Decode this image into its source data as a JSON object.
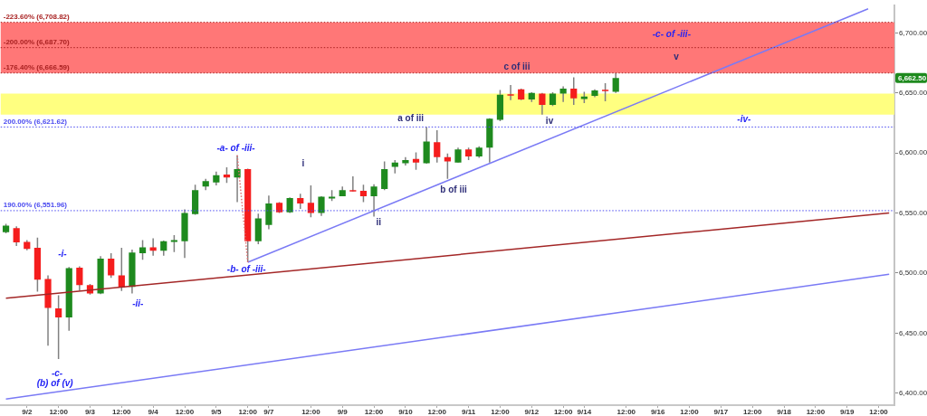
{
  "chart_data": {
    "type": "candlestick",
    "categories": [
      null,
      null,
      "9/2",
      null,
      null,
      "12:00",
      null,
      null,
      "9/3",
      null,
      null,
      "12:00",
      null,
      null,
      "9/4",
      null,
      null,
      "12:00",
      null,
      null,
      "9/5",
      null,
      null,
      "12:00",
      null,
      "9/7",
      null,
      null,
      null,
      "12:00",
      null,
      null,
      "9/9",
      null,
      null,
      "12:00",
      null,
      null,
      "9/10",
      null,
      null,
      "12:00",
      null,
      null,
      "9/11",
      null,
      null,
      "12:00",
      null,
      null,
      "9/12",
      null,
      null,
      "12:00",
      null,
      "9/14",
      null,
      null,
      null,
      "12:00",
      null,
      null,
      "9/16",
      null,
      null,
      "12:00",
      null,
      null,
      "9/17",
      null,
      null,
      "12:00",
      null,
      null,
      "9/18",
      null,
      null,
      "12:00",
      null,
      null,
      "9/19",
      null,
      null,
      "12:00",
      null
    ],
    "ohlc": [
      [
        6534,
        6541,
        6533,
        6539.5
      ],
      [
        6537.5,
        6539,
        6522.5,
        6525.5
      ],
      [
        6526,
        6527.5,
        6519,
        6520
      ],
      [
        6521,
        6529.5,
        6484.5,
        6494.5
      ],
      [
        6495,
        6498,
        6439.5,
        6471
      ],
      [
        6470.5,
        6481.5,
        6428.5,
        6463
      ],
      [
        6463,
        6505,
        6452,
        6504
      ],
      [
        6504.5,
        6505.5,
        6485.5,
        6490
      ],
      [
        6490,
        6491,
        6482,
        6483
      ],
      [
        6483,
        6514,
        6482.5,
        6512
      ],
      [
        6512,
        6516.5,
        6496,
        6498
      ],
      [
        6498,
        6521,
        6485,
        6488
      ],
      [
        6488.5,
        6519.5,
        6483,
        6517
      ],
      [
        6516.5,
        6527.5,
        6511,
        6521.5
      ],
      [
        6521.5,
        6529,
        6514.5,
        6518.5
      ],
      [
        6518.5,
        6527,
        6514.5,
        6526.5
      ],
      [
        6526,
        6531.5,
        6517.5,
        6527.5
      ],
      [
        6526.5,
        6553,
        6512.5,
        6550
      ],
      [
        6549,
        6573.5,
        6548.5,
        6569
      ],
      [
        6572,
        6578.5,
        6569,
        6576.5
      ],
      [
        6575.5,
        6584.5,
        6573,
        6581.5
      ],
      [
        6582,
        6588,
        6575,
        6579.5
      ],
      [
        6579.5,
        6598,
        6559,
        6586.5
      ],
      [
        6586.5,
        6587,
        6509,
        6526.5
      ],
      [
        6526.5,
        6549.5,
        6524,
        6545.5
      ],
      [
        6540,
        6564.5,
        6536.5,
        6558
      ],
      [
        6558.5,
        6559,
        6550,
        6550.5
      ],
      [
        6550.5,
        6563,
        6550,
        6562.5
      ],
      [
        6562.5,
        6566,
        6553.5,
        6558
      ],
      [
        6558.5,
        6573,
        6546.5,
        6550
      ],
      [
        6550,
        6564,
        6547.5,
        6563.5
      ],
      [
        6562,
        6569,
        6560,
        6563.5
      ],
      [
        6564,
        6572,
        6564,
        6569
      ],
      [
        6569,
        6580.5,
        6568,
        6568
      ],
      [
        6568.5,
        6573.5,
        6559,
        6564
      ],
      [
        6564,
        6574,
        6547,
        6572
      ],
      [
        6570,
        6593,
        6569,
        6586.5
      ],
      [
        6588.5,
        6594,
        6583,
        6592
      ],
      [
        6591.5,
        6596.5,
        6589.5,
        6594
      ],
      [
        6595,
        6600.5,
        6586,
        6592
      ],
      [
        6591.5,
        6621.5,
        6591,
        6609.5
      ],
      [
        6609,
        6619,
        6592,
        6596.5
      ],
      [
        6596.5,
        6599.5,
        6578.5,
        6593
      ],
      [
        6592,
        6604.5,
        6592,
        6603
      ],
      [
        6603,
        6604.5,
        6594,
        6597
      ],
      [
        6597,
        6605.5,
        6596,
        6604.5
      ],
      [
        6604.5,
        6629,
        6592,
        6628.5
      ],
      [
        6627.5,
        6652.5,
        6626.5,
        6648.5
      ],
      [
        6648.5,
        6656.5,
        6644,
        6648
      ],
      [
        6653,
        6653.5,
        6644,
        6644.5
      ],
      [
        6644.5,
        6650.5,
        6642.5,
        6650
      ],
      [
        6649.5,
        6650,
        6632,
        6640
      ],
      [
        6640,
        6650.5,
        6639,
        6649.5
      ],
      [
        6649.5,
        6655.5,
        6642.5,
        6653.5
      ],
      [
        6653.5,
        6663,
        6640,
        6645.5
      ],
      [
        6645,
        6651,
        6641.5,
        6647
      ],
      [
        6647.5,
        6653,
        6646.5,
        6652
      ],
      [
        6652.5,
        6658,
        6643,
        6651.5
      ],
      [
        6651,
        6666.5,
        6650,
        6662.5
      ],
      null,
      null,
      null,
      null,
      null,
      null,
      null,
      null,
      null,
      null,
      null,
      null,
      null,
      null,
      null,
      null,
      null,
      null,
      null,
      null,
      null,
      null,
      null,
      null,
      null,
      null
    ],
    "colors": [
      "#1e8a1e",
      "#f51d1d",
      "#f51d1d",
      "#f51d1d",
      "#f51d1d",
      "#f51d1d",
      "#1e8a1e",
      "#f51d1d",
      "#f51d1d",
      "#1e8a1e",
      "#f51d1d",
      "#f51d1d",
      "#1e8a1e",
      "#1e8a1e",
      "#f51d1d",
      "#1e8a1e",
      "#1e8a1e",
      "#1e8a1e",
      "#1e8a1e",
      "#1e8a1e",
      "#1e8a1e",
      "#f51d1d",
      "#1e8a1e",
      "#f51d1d",
      "#1e8a1e",
      "#1e8a1e",
      "#f51d1d",
      "#1e8a1e",
      "#f51d1d",
      "#f51d1d",
      "#1e8a1e",
      "#1e8a1e",
      "#1e8a1e",
      "#f51d1d",
      "#f51d1d",
      "#1e8a1e",
      "#1e8a1e",
      "#1e8a1e",
      "#1e8a1e",
      "#f51d1d",
      "#1e8a1e",
      "#f51d1d",
      "#f51d1d",
      "#1e8a1e",
      "#f51d1d",
      "#1e8a1e",
      "#1e8a1e",
      "#1e8a1e",
      "#f51d1d",
      "#f51d1d",
      "#1e8a1e",
      "#f51d1d",
      "#1e8a1e",
      "#1e8a1e",
      "#f51d1d",
      "#1e8a1e",
      "#1e8a1e",
      "#f51d1d",
      "#1e8a1e",
      null,
      null,
      null,
      null,
      null,
      null,
      null,
      null,
      null,
      null,
      null,
      null,
      null,
      null,
      null,
      null,
      null,
      null,
      null,
      null,
      null,
      null,
      null,
      null,
      null,
      null
    ],
    "series": [
      {
        "type": "line",
        "color": "#a32626",
        "values": [
          6479,
          null,
          null,
          null,
          null,
          null,
          null,
          null,
          null,
          null,
          null,
          null,
          null,
          null,
          null,
          null,
          null,
          null,
          null,
          null,
          null,
          null,
          null,
          null,
          null,
          null,
          null,
          null,
          null,
          null,
          null,
          null,
          null,
          null,
          null,
          null,
          null,
          null,
          null,
          null,
          null,
          null,
          null,
          null,
          null,
          null,
          null,
          null,
          null,
          null,
          null,
          null,
          null,
          null,
          null,
          null,
          null,
          null,
          null,
          null,
          null,
          null,
          null,
          null,
          null,
          null,
          null,
          null,
          null,
          null,
          null,
          null,
          null,
          null,
          null,
          null,
          null,
          null,
          null,
          null,
          null,
          null,
          null,
          null,
          6550
        ]
      },
      {
        "type": "line",
        "color": "#7a7af5",
        "values": [
          6395,
          null,
          null,
          null,
          null,
          null,
          null,
          null,
          null,
          null,
          null,
          null,
          null,
          null,
          null,
          null,
          null,
          null,
          null,
          null,
          null,
          null,
          null,
          null,
          null,
          null,
          null,
          null,
          null,
          null,
          null,
          null,
          null,
          null,
          null,
          null,
          null,
          null,
          null,
          null,
          null,
          null,
          null,
          null,
          null,
          null,
          null,
          null,
          null,
          null,
          null,
          null,
          null,
          null,
          null,
          null,
          null,
          null,
          null,
          null,
          null,
          null,
          null,
          null,
          null,
          null,
          null,
          null,
          null,
          null,
          null,
          null,
          null,
          null,
          null,
          null,
          null,
          null,
          null,
          null,
          null,
          null,
          null,
          null,
          6499
        ]
      },
      {
        "type": "line",
        "color": "#7a7af5",
        "values": [
          null,
          null,
          null,
          null,
          null,
          null,
          null,
          null,
          null,
          null,
          null,
          null,
          null,
          null,
          null,
          null,
          null,
          null,
          null,
          null,
          null,
          null,
          null,
          6509,
          null,
          null,
          null,
          null,
          null,
          null,
          null,
          null,
          null,
          null,
          null,
          null,
          null,
          null,
          null,
          null,
          null,
          null,
          null,
          null,
          null,
          null,
          null,
          null,
          null,
          null,
          null,
          null,
          null,
          null,
          null,
          null,
          null,
          null,
          null,
          null,
          null,
          null,
          null,
          null,
          null,
          null,
          null,
          null,
          null,
          null,
          null,
          null,
          null,
          null,
          null,
          null,
          null,
          null,
          null,
          null,
          null,
          null,
          6720,
          null,
          null
        ]
      },
      {
        "type": "line",
        "color": "#e07070",
        "line_style": "dotted",
        "values": [
          null,
          null,
          null,
          null,
          null,
          null,
          null,
          null,
          null,
          null,
          null,
          null,
          null,
          null,
          null,
          null,
          null,
          null,
          null,
          null,
          null,
          null,
          6598,
          6509,
          null,
          null,
          null,
          null,
          null,
          null,
          null,
          null,
          null,
          null,
          null,
          null,
          null,
          null,
          null,
          null,
          null,
          null,
          null,
          null,
          null,
          null,
          null,
          null,
          null,
          null,
          null,
          null,
          null,
          null,
          null,
          null,
          null,
          null,
          null,
          null,
          null,
          null,
          null,
          null,
          null,
          null,
          null,
          null,
          null,
          null,
          null,
          null,
          null,
          null,
          null,
          null,
          null,
          null,
          null,
          null,
          null,
          null,
          null,
          null,
          null
        ]
      }
    ],
    "ylim": [
      6390,
      6723
    ],
    "yticks": [
      {
        "value": 6400,
        "label": "6,400.00"
      },
      {
        "value": 6450,
        "label": "6,450.00"
      },
      {
        "value": 6500,
        "label": "6,500.00"
      },
      {
        "value": 6550,
        "label": "6,550.00"
      },
      {
        "value": 6600,
        "label": "6,600.00"
      },
      {
        "value": 6650,
        "label": "6,650.00"
      },
      {
        "value": 6700,
        "label": "6,700.00"
      }
    ],
    "bands": [
      {
        "axis": "y",
        "from": 6632,
        "to": 6649.5,
        "color": "#ffff80"
      },
      {
        "axis": "y",
        "from": 6666.59,
        "to": 6708.82,
        "color": "#ff7777"
      }
    ],
    "ref_lines": [
      {
        "axis": "y",
        "value": 6621.62,
        "label": "200.00% (6,621.62)",
        "color": "#4a4af0",
        "line_style": "dotted"
      },
      {
        "axis": "y",
        "value": 6551.96,
        "label": "190.00% (6,551.96)",
        "color": "#4a4af0",
        "line_style": "dotted"
      },
      {
        "axis": "y",
        "value": 6666.59,
        "label": "-176.40% (6,666.59)",
        "color": "#a82020",
        "line_style": "dotted"
      },
      {
        "axis": "y",
        "value": 6687.7,
        "label": "-200.00% (6,687.70)",
        "color": "#a82020",
        "line_style": "dotted"
      },
      {
        "axis": "y",
        "value": 6708.82,
        "label": "-223.60% (6,708.82)",
        "color": "#a82020",
        "line_style": "dotted"
      }
    ],
    "annotations": [
      "-i-",
      "-c-",
      "(b) of (v)",
      "-ii-",
      "-a- of -iii-",
      "-b- of -iii-",
      "-c- of -iii-",
      "-iv-",
      "i",
      "ii",
      "a of iii",
      "b of iii",
      "c of iii",
      "iv",
      "v",
      {
        "text": "6,662.50",
        "y": 6662.5
      }
    ]
  }
}
